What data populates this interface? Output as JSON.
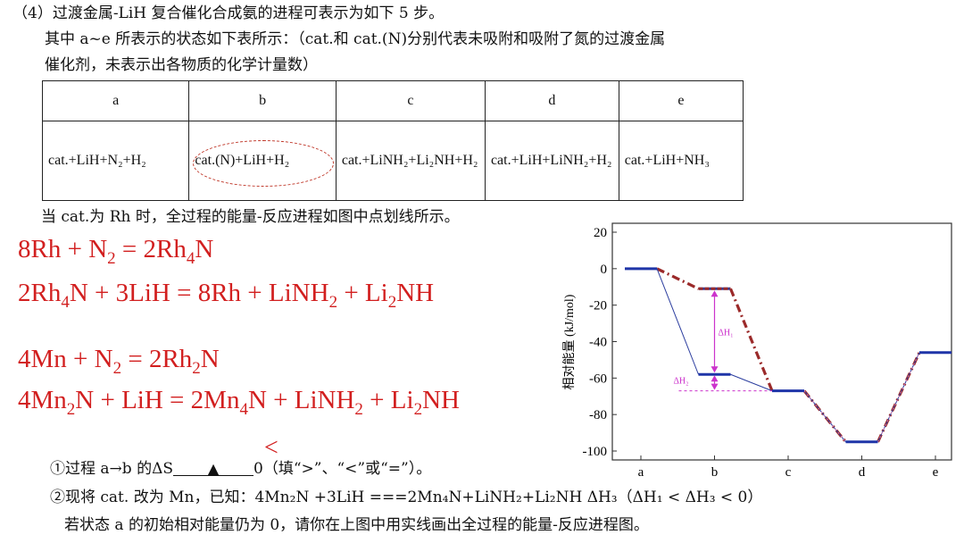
{
  "intro": {
    "line1": "（4）过渡金属-LiH 复合催化合成氨的进程可表示为如下 5 步。",
    "line2": "其中 a~e 所表示的状态如下表所示：（cat.和 cat.(N)分别代表未吸附和吸附了氮的过渡金属",
    "line3": "催化剂，未表示出各物质的化学计量数）"
  },
  "table": {
    "headers": [
      "a",
      "b",
      "c",
      "d",
      "e"
    ],
    "cells": [
      "cat.+LiH+N₂+H₂",
      "cat.(N)+LiH+H₂",
      "cat.+LiNH₂+Li₂NH+H₂",
      "cat.+LiH+LiNH₂+H₂",
      "cat.+LiH+NH₃"
    ]
  },
  "note": "当 cat.为 Rh 时，全过程的能量-反应进程如图中点划线所示。",
  "equations": {
    "eq1": {
      "l1": "8Rh + N",
      "s1": "2",
      "l2": " = 2Rh",
      "s2": "4",
      "l3": "N"
    },
    "eq2": {
      "l1": "2Rh",
      "s1": "4",
      "l2": "N + 3LiH = 8Rh + LiNH",
      "s2": "2",
      "l3": " + Li",
      "s3": "2",
      "l4": "NH"
    },
    "eq3": {
      "l1": "4Mn + N",
      "s1": "2",
      "l2": " = 2Rh",
      "s2": "2",
      "l3": "N"
    },
    "eq4": {
      "l1": "4Mn",
      "s1": "2",
      "l2": "N + LiH = 2Mn",
      "s2": "4",
      "l3": "N + LiNH",
      "s3": "2",
      "l4": " + Li",
      "s4": "2",
      "l5": "NH"
    }
  },
  "questions": {
    "q1_pre": "①过程 a→b 的ΔS",
    "q1_mark": "▲",
    "q1_post": "0（填“>”、“<”或“=”）。",
    "answer": "<",
    "q2": "②现将 cat. 改为 Mn，已知：4Mn₂N +3LiH ===2Mn₄N+LiNH₂+Li₂NH    ΔH₃（ΔH₁ < ΔH₃ < 0）",
    "q3": "若状态 a 的初始相对能量仍为 0，请你在上图中用实线画出全过程的能量-反应进程图。"
  },
  "chart_data": {
    "type": "line",
    "categories": [
      "a",
      "b",
      "c",
      "d",
      "e"
    ],
    "ylabel": "相对能量 (kJ/mol)",
    "ylim": [
      -100,
      20
    ],
    "yticks": [
      20,
      0,
      -20,
      -40,
      -60,
      -80,
      -100
    ],
    "series": [
      {
        "values": [
          0,
          -11,
          -67,
          -95,
          -46
        ],
        "style": "dash-dot",
        "color": "#9b2a2a"
      },
      {
        "values": [
          0,
          -58,
          -67,
          -95,
          -46
        ],
        "style": "solid",
        "color": "#2c3e9f"
      }
    ],
    "annotations": [
      {
        "text": "ΔH₁",
        "color": "#cc33cc"
      },
      {
        "text": "ΔH₂",
        "color": "#cc33cc"
      }
    ]
  }
}
